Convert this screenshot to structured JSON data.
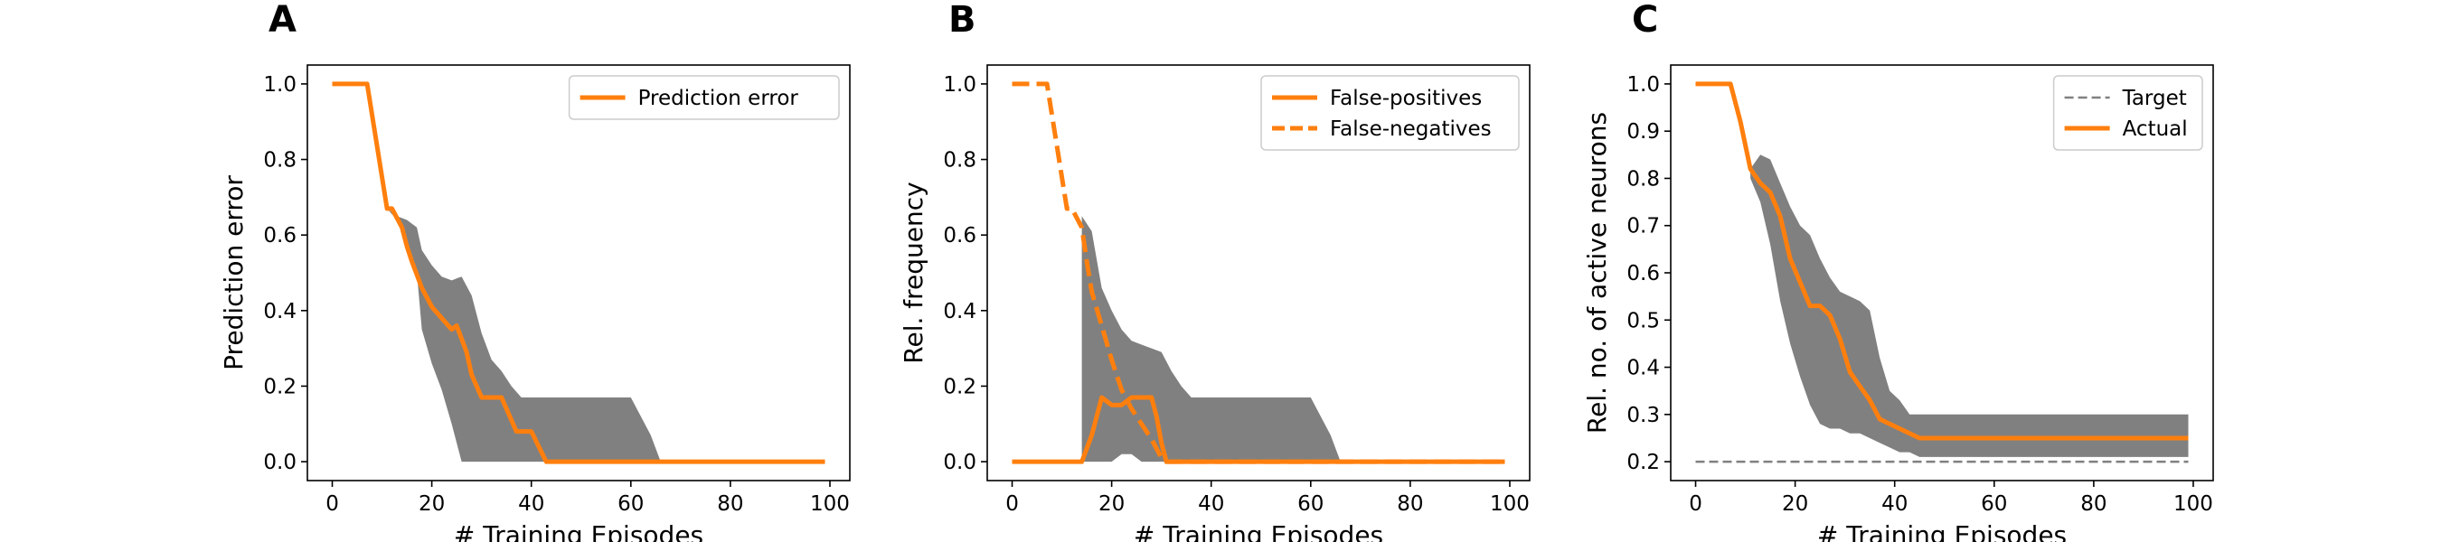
{
  "chart_data": [
    {
      "type": "line",
      "panel_label": "A",
      "xlabel": "# Training Episodes",
      "ylabel": "Prediction error",
      "xlim": [
        -5,
        104
      ],
      "ylim": [
        -0.05,
        1.05
      ],
      "xticks": [
        0,
        20,
        40,
        60,
        80,
        100
      ],
      "yticks": [
        0.0,
        0.2,
        0.4,
        0.6,
        0.8,
        1.0
      ],
      "ytick_labels": [
        "0.0",
        "0.2",
        "0.4",
        "0.6",
        "0.8",
        "1.0"
      ],
      "legend_position": "top-right",
      "colors": {
        "line": "#ff7f0e",
        "band": "#808080"
      },
      "series": [
        {
          "name": "Prediction error",
          "style": "solid",
          "x": [
            0,
            7,
            11,
            12,
            14,
            15,
            16,
            18,
            20,
            22,
            24,
            25,
            27,
            28,
            30,
            34,
            37,
            40,
            43,
            50,
            60,
            70,
            80,
            90,
            99
          ],
          "y": [
            1.0,
            1.0,
            0.67,
            0.67,
            0.62,
            0.57,
            0.53,
            0.46,
            0.41,
            0.38,
            0.35,
            0.36,
            0.29,
            0.23,
            0.17,
            0.17,
            0.08,
            0.08,
            0.0,
            0.0,
            0.0,
            0.0,
            0.0,
            0.0,
            0.0
          ]
        }
      ],
      "band": {
        "x": [
          11,
          13,
          15,
          17,
          18,
          20,
          22,
          24,
          26,
          28,
          30,
          32,
          34,
          36,
          38,
          40,
          42,
          44,
          46,
          50,
          55,
          60,
          62,
          64,
          66,
          70,
          80,
          99
        ],
        "upper": [
          0.67,
          0.65,
          0.64,
          0.62,
          0.56,
          0.52,
          0.49,
          0.48,
          0.49,
          0.44,
          0.34,
          0.27,
          0.24,
          0.2,
          0.17,
          0.17,
          0.17,
          0.17,
          0.17,
          0.17,
          0.17,
          0.17,
          0.12,
          0.07,
          0.0,
          0.0,
          0.0,
          0.0
        ],
        "lower": [
          0.67,
          0.64,
          0.57,
          0.5,
          0.35,
          0.26,
          0.19,
          0.1,
          0.0,
          0.0,
          0.0,
          0.0,
          0.0,
          0.0,
          0.0,
          0.0,
          0.0,
          0.0,
          0.0,
          0.0,
          0.0,
          0.0,
          0.0,
          0.0,
          0.0,
          0.0,
          0.0,
          0.0
        ]
      }
    },
    {
      "type": "line",
      "panel_label": "B",
      "xlabel": "# Training Episodes",
      "ylabel": "Rel. frequency",
      "xlim": [
        -5,
        104
      ],
      "ylim": [
        -0.05,
        1.05
      ],
      "xticks": [
        0,
        20,
        40,
        60,
        80,
        100
      ],
      "yticks": [
        0.0,
        0.2,
        0.4,
        0.6,
        0.8,
        1.0
      ],
      "ytick_labels": [
        "0.0",
        "0.2",
        "0.4",
        "0.6",
        "0.8",
        "1.0"
      ],
      "legend_position": "top-right",
      "colors": {
        "line": "#ff7f0e",
        "band": "#808080"
      },
      "series": [
        {
          "name": "False-positives",
          "style": "solid",
          "x": [
            0,
            14,
            16,
            18,
            20,
            22,
            24,
            25,
            28,
            29,
            30,
            31,
            40,
            60,
            80,
            99
          ],
          "y": [
            0.0,
            0.0,
            0.07,
            0.17,
            0.15,
            0.15,
            0.17,
            0.17,
            0.17,
            0.12,
            0.05,
            0.0,
            0.0,
            0.0,
            0.0,
            0.0
          ]
        },
        {
          "name": "False-negatives",
          "style": "dashed",
          "x": [
            0,
            7,
            11,
            12,
            14,
            15,
            16,
            18,
            20,
            22,
            24,
            26,
            28,
            30,
            31,
            40,
            99
          ],
          "y": [
            1.0,
            1.0,
            0.67,
            0.67,
            0.62,
            0.53,
            0.45,
            0.36,
            0.27,
            0.19,
            0.14,
            0.1,
            0.06,
            0.01,
            0.0,
            0.0,
            0.0
          ]
        }
      ],
      "band": {
        "x": [
          14,
          16,
          18,
          20,
          22,
          24,
          26,
          28,
          30,
          32,
          34,
          36,
          38,
          40,
          45,
          50,
          55,
          60,
          62,
          64,
          66,
          70,
          80,
          99
        ],
        "upper": [
          0.65,
          0.61,
          0.46,
          0.4,
          0.35,
          0.32,
          0.31,
          0.3,
          0.29,
          0.24,
          0.2,
          0.17,
          0.17,
          0.17,
          0.17,
          0.17,
          0.17,
          0.17,
          0.12,
          0.07,
          0.0,
          0.0,
          0.0,
          0.0
        ],
        "lower": [
          0.0,
          0.0,
          0.0,
          0.0,
          0.02,
          0.02,
          0.0,
          0.0,
          0.0,
          0.0,
          0.0,
          0.0,
          0.0,
          0.0,
          0.0,
          0.0,
          0.0,
          0.0,
          0.0,
          0.0,
          0.0,
          0.0,
          0.0,
          0.0
        ]
      }
    },
    {
      "type": "line",
      "panel_label": "C",
      "xlabel": "# Training Episodes",
      "ylabel": "Rel. no. of active neurons",
      "xlim": [
        -5,
        104
      ],
      "ylim": [
        0.16,
        1.04
      ],
      "xticks": [
        0,
        20,
        40,
        60,
        80,
        100
      ],
      "yticks": [
        0.2,
        0.3,
        0.4,
        0.5,
        0.6,
        0.7,
        0.8,
        0.9,
        1.0
      ],
      "ytick_labels": [
        "0.2",
        "0.3",
        "0.4",
        "0.5",
        "0.6",
        "0.7",
        "0.8",
        "0.9",
        "1.0"
      ],
      "legend_position": "top-right",
      "colors": {
        "line": "#ff7f0e",
        "target": "#808080",
        "band": "#808080"
      },
      "series": [
        {
          "name": "Target",
          "style": "dashed",
          "x": [
            0,
            99
          ],
          "y": [
            0.2,
            0.2
          ]
        },
        {
          "name": "Actual",
          "style": "solid",
          "x": [
            0,
            7,
            9,
            11,
            13,
            15,
            17,
            19,
            21,
            23,
            25,
            27,
            29,
            31,
            33,
            35,
            37,
            39,
            41,
            43,
            45,
            50,
            60,
            70,
            80,
            90,
            99
          ],
          "y": [
            1.0,
            1.0,
            0.92,
            0.82,
            0.79,
            0.77,
            0.72,
            0.63,
            0.58,
            0.53,
            0.53,
            0.51,
            0.46,
            0.39,
            0.36,
            0.33,
            0.29,
            0.28,
            0.27,
            0.26,
            0.25,
            0.25,
            0.25,
            0.25,
            0.25,
            0.25,
            0.25
          ]
        }
      ],
      "band": {
        "x": [
          11,
          13,
          15,
          17,
          19,
          21,
          23,
          25,
          27,
          29,
          31,
          33,
          35,
          37,
          39,
          41,
          43,
          45,
          50,
          60,
          70,
          80,
          90,
          99
        ],
        "upper": [
          0.82,
          0.85,
          0.84,
          0.79,
          0.74,
          0.7,
          0.68,
          0.63,
          0.59,
          0.56,
          0.55,
          0.54,
          0.52,
          0.42,
          0.35,
          0.33,
          0.3,
          0.3,
          0.3,
          0.3,
          0.3,
          0.3,
          0.3,
          0.3
        ],
        "lower": [
          0.8,
          0.75,
          0.66,
          0.54,
          0.45,
          0.38,
          0.32,
          0.28,
          0.27,
          0.27,
          0.26,
          0.26,
          0.25,
          0.24,
          0.23,
          0.22,
          0.22,
          0.21,
          0.21,
          0.21,
          0.21,
          0.21,
          0.21,
          0.21
        ]
      }
    }
  ]
}
